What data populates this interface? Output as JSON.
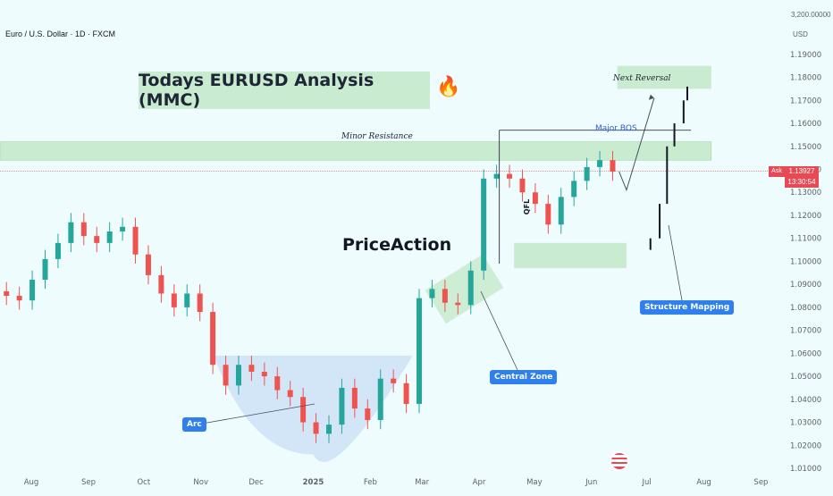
{
  "header": {
    "symbol": "Euro / U.S. Dollar · 1D · FXCM",
    "currency": "USD",
    "top_value": "3,200.00000"
  },
  "annotations": {
    "title": "Todays EURUSD Analysis (MMC)",
    "fire_icon": "🔥",
    "price_action": "PriceAction",
    "minor_resistance": "Minor Resistance",
    "next_reversal": "Next Reversal",
    "major_bos": "Major BOS",
    "qfl": "QFL",
    "arc": "Arc",
    "central_zone": "Central Zone",
    "structure_mapping": "Structure Mapping"
  },
  "price_tag": {
    "side": "Ask",
    "price": "1.13927",
    "countdown": "13:30:54"
  },
  "colors": {
    "background": "#eefcfe",
    "bull": "#26a69a",
    "bear": "#ef5350",
    "zone_green": "#c9ecd0",
    "arc_blue": "#cfe3f7",
    "tag_blue": "#2f80ed",
    "ask_red": "#e64a55"
  },
  "chart_data": {
    "type": "line",
    "title": "",
    "xlabel": "",
    "ylabel": "",
    "y_axis_position": "right",
    "ylim": [
      1.01,
      1.195
    ],
    "x_range": [
      "2024-07-15",
      "2025-09-10"
    ],
    "y_ticks": [
      "1.19000",
      "1.18000",
      "1.17000",
      "1.16000",
      "1.15000",
      "1.14000",
      "1.13000",
      "1.12000",
      "1.11000",
      "1.10000",
      "1.09000",
      "1.08000",
      "1.07000",
      "1.06000",
      "1.05000",
      "1.04000",
      "1.03000",
      "1.02000",
      "1.01000"
    ],
    "x_ticks": [
      {
        "label": "Aug",
        "date": "2024-08-01",
        "bold": false
      },
      {
        "label": "Sep",
        "date": "2024-09-01",
        "bold": false
      },
      {
        "label": "Oct",
        "date": "2024-10-01",
        "bold": false
      },
      {
        "label": "Nov",
        "date": "2024-11-01",
        "bold": false
      },
      {
        "label": "Dec",
        "date": "2024-12-01",
        "bold": false
      },
      {
        "label": "2025",
        "date": "2025-01-01",
        "bold": true
      },
      {
        "label": "Feb",
        "date": "2025-02-01",
        "bold": false
      },
      {
        "label": "Mar",
        "date": "2025-03-01",
        "bold": false
      },
      {
        "label": "Apr",
        "date": "2025-04-01",
        "bold": false
      },
      {
        "label": "May",
        "date": "2025-05-01",
        "bold": false
      },
      {
        "label": "Jun",
        "date": "2025-06-01",
        "bold": false
      },
      {
        "label": "Jul",
        "date": "2025-07-01",
        "bold": false
      },
      {
        "label": "Aug",
        "date": "2025-08-01",
        "bold": false
      },
      {
        "label": "Sep",
        "date": "2025-09-01",
        "bold": false
      }
    ],
    "series": [
      {
        "points": [
          [
            "2024-07-15",
            1.087
          ],
          [
            "2024-07-22",
            1.085
          ],
          [
            "2024-07-29",
            1.083
          ],
          [
            "2024-08-05",
            1.092
          ],
          [
            "2024-08-12",
            1.101
          ],
          [
            "2024-08-19",
            1.108
          ],
          [
            "2024-08-26",
            1.117
          ],
          [
            "2024-09-02",
            1.111
          ],
          [
            "2024-09-09",
            1.108
          ],
          [
            "2024-09-16",
            1.113
          ],
          [
            "2024-09-23",
            1.115
          ],
          [
            "2024-09-30",
            1.103
          ],
          [
            "2024-10-07",
            1.094
          ],
          [
            "2024-10-14",
            1.086
          ],
          [
            "2024-10-21",
            1.08
          ],
          [
            "2024-10-28",
            1.086
          ],
          [
            "2024-11-04",
            1.078
          ],
          [
            "2024-11-11",
            1.055
          ],
          [
            "2024-11-18",
            1.046
          ],
          [
            "2024-11-25",
            1.055
          ],
          [
            "2024-12-02",
            1.052
          ],
          [
            "2024-12-09",
            1.05
          ],
          [
            "2024-12-16",
            1.044
          ],
          [
            "2024-12-23",
            1.041
          ],
          [
            "2024-12-30",
            1.03
          ],
          [
            "2025-01-06",
            1.025
          ],
          [
            "2025-01-13",
            1.029
          ],
          [
            "2025-01-20",
            1.045
          ],
          [
            "2025-01-27",
            1.036
          ],
          [
            "2025-02-03",
            1.031
          ],
          [
            "2025-02-10",
            1.049
          ],
          [
            "2025-02-17",
            1.047
          ],
          [
            "2025-02-24",
            1.038
          ],
          [
            "2025-03-03",
            1.084
          ],
          [
            "2025-03-10",
            1.088
          ],
          [
            "2025-03-17",
            1.082
          ],
          [
            "2025-03-24",
            1.081
          ],
          [
            "2025-03-31",
            1.096
          ],
          [
            "2025-04-07",
            1.136
          ],
          [
            "2025-04-14",
            1.138
          ],
          [
            "2025-04-21",
            1.136
          ],
          [
            "2025-04-28",
            1.13
          ],
          [
            "2025-05-05",
            1.125
          ],
          [
            "2025-05-12",
            1.116
          ],
          [
            "2025-05-19",
            1.128
          ],
          [
            "2025-05-26",
            1.135
          ],
          [
            "2025-06-02",
            1.141
          ],
          [
            "2025-06-09",
            1.144
          ],
          [
            "2025-06-16",
            1.139
          ]
        ]
      }
    ],
    "zones": [
      {
        "label": "Minor Resistance",
        "start": "2024-07-15",
        "end": "2025-08-05",
        "low": 1.144,
        "high": 1.152
      },
      {
        "label": "Next Reversal",
        "start": "2025-06-15",
        "end": "2025-08-05",
        "low": 1.175,
        "high": 1.185
      },
      {
        "label": "",
        "start": "2025-04-20",
        "end": "2025-06-20",
        "low": 1.097,
        "high": 1.108
      }
    ],
    "projection": [
      [
        "2025-06-16",
        1.139
      ],
      [
        "2025-06-20",
        1.131
      ],
      [
        "2025-07-05",
        1.171
      ]
    ],
    "future_sketch": [
      [
        "2025-06-28",
        1.105
      ],
      [
        "2025-07-03",
        1.11
      ],
      [
        "2025-07-08",
        1.125
      ],
      [
        "2025-07-12",
        1.15
      ],
      [
        "2025-07-16",
        1.16
      ],
      [
        "2025-07-21",
        1.17
      ],
      [
        "2025-07-23",
        1.176
      ]
    ],
    "levels": [
      {
        "label": "Major BOS",
        "value": 1.157,
        "start": "2025-04-12",
        "end": "2025-07-25"
      },
      {
        "label": "Ask",
        "value": 1.13927
      }
    ]
  }
}
